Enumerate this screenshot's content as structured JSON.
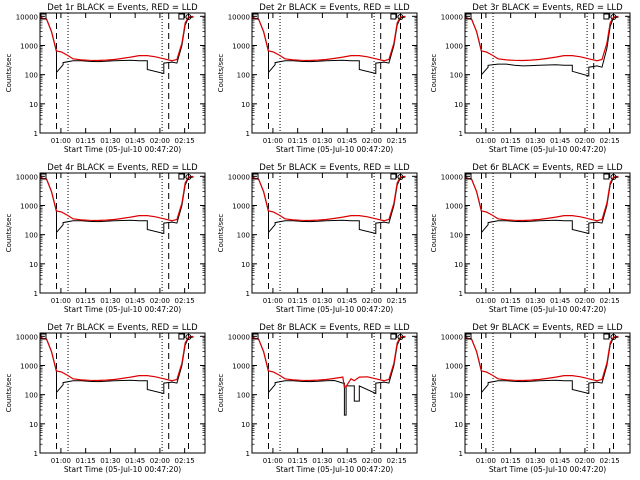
{
  "colors": {
    "background": "#ffffff",
    "axis": "#000000",
    "events": "#000000",
    "lld": "#dd0000"
  },
  "shared": {
    "type": "line",
    "ylabel": "Counts/sec",
    "xlabel": "Start Time (05-Jul-10 00:47:20)",
    "x_ticks": [
      "01:00",
      "01:15",
      "01:30",
      "01:45",
      "02:00",
      "02:15"
    ],
    "x_tick_offsets_min": [
      12.67,
      27.67,
      42.67,
      57.67,
      72.67,
      87.67
    ],
    "xlim_min": [
      0,
      100
    ],
    "y_ticks": [
      "1",
      "10",
      "100",
      "1000",
      "10000"
    ],
    "ylim": [
      1,
      13000
    ],
    "yscale": "log",
    "dashed_markers_min": [
      10,
      78,
      90
    ],
    "dotted_markers_min": [
      17,
      74
    ]
  },
  "chart_data": [
    {
      "title": "Det 1r BLACK = Events, RED = LLD",
      "type": "line",
      "series": [
        {
          "name": "Events",
          "color": "black",
          "x": [
            0,
            4,
            7,
            10,
            10,
            14,
            14,
            20,
            25,
            30,
            35,
            40,
            45,
            50,
            55,
            60,
            65,
            65,
            75,
            75,
            80,
            80,
            83,
            86,
            88,
            90,
            93
          ],
          "y": [
            9000,
            8000,
            3000,
            600,
            120,
            220,
            260,
            300,
            300,
            285,
            280,
            290,
            300,
            305,
            310,
            300,
            300,
            150,
            110,
            250,
            270,
            270,
            250,
            1000,
            5000,
            9000,
            9500
          ]
        },
        {
          "name": "LLD",
          "color": "red",
          "x": [
            0,
            4,
            7,
            10,
            13,
            17,
            20,
            25,
            30,
            35,
            40,
            45,
            50,
            55,
            60,
            65,
            70,
            75,
            80,
            83,
            86,
            88,
            90,
            93
          ],
          "y": [
            9000,
            8000,
            3000,
            650,
            600,
            450,
            350,
            320,
            310,
            305,
            315,
            330,
            360,
            400,
            450,
            450,
            410,
            350,
            300,
            330,
            1200,
            6000,
            9500,
            10000
          ]
        }
      ]
    },
    {
      "title": "Det 2r BLACK = Events, RED = LLD",
      "type": "line",
      "series": [
        {
          "name": "Events",
          "color": "black",
          "x": [
            0,
            4,
            7,
            10,
            10,
            14,
            14,
            20,
            25,
            30,
            35,
            40,
            45,
            50,
            55,
            60,
            65,
            65,
            75,
            75,
            80,
            80,
            83,
            86,
            88,
            90,
            93
          ],
          "y": [
            9000,
            8000,
            3000,
            600,
            120,
            220,
            260,
            300,
            300,
            285,
            280,
            290,
            300,
            305,
            310,
            300,
            300,
            150,
            110,
            250,
            270,
            270,
            250,
            1000,
            5000,
            9000,
            9500
          ]
        },
        {
          "name": "LLD",
          "color": "red",
          "x": [
            0,
            4,
            7,
            10,
            13,
            17,
            20,
            25,
            30,
            35,
            40,
            45,
            50,
            55,
            60,
            65,
            70,
            75,
            80,
            83,
            86,
            88,
            90,
            93
          ],
          "y": [
            9000,
            8000,
            3000,
            650,
            600,
            450,
            350,
            320,
            310,
            305,
            315,
            330,
            360,
            400,
            450,
            450,
            410,
            350,
            300,
            330,
            1200,
            6000,
            9500,
            10000
          ]
        }
      ]
    },
    {
      "title": "Det 3r BLACK = Events, RED = LLD",
      "type": "line",
      "series": [
        {
          "name": "Events",
          "color": "black",
          "x": [
            0,
            4,
            7,
            10,
            10,
            14,
            14,
            20,
            25,
            30,
            35,
            40,
            45,
            50,
            55,
            60,
            65,
            65,
            75,
            75,
            80,
            80,
            83,
            86,
            88,
            90,
            93
          ],
          "y": [
            9000,
            8000,
            3000,
            600,
            100,
            180,
            210,
            230,
            230,
            210,
            200,
            205,
            210,
            215,
            220,
            210,
            210,
            130,
            90,
            180,
            200,
            200,
            180,
            800,
            4500,
            9000,
            9500
          ]
        },
        {
          "name": "LLD",
          "color": "red",
          "x": [
            0,
            4,
            7,
            10,
            13,
            17,
            20,
            25,
            30,
            35,
            40,
            45,
            50,
            55,
            60,
            65,
            70,
            75,
            80,
            83,
            86,
            88,
            90,
            93
          ],
          "y": [
            9000,
            8000,
            3000,
            650,
            600,
            450,
            350,
            320,
            310,
            305,
            315,
            330,
            360,
            400,
            450,
            450,
            410,
            350,
            300,
            330,
            1200,
            6000,
            9500,
            10000
          ]
        }
      ]
    },
    {
      "title": "Det 4r BLACK = Events, RED = LLD",
      "type": "line",
      "series": [
        {
          "name": "Events",
          "color": "black",
          "x": [
            0,
            4,
            7,
            10,
            10,
            14,
            14,
            20,
            25,
            30,
            35,
            40,
            45,
            50,
            55,
            60,
            65,
            65,
            75,
            75,
            80,
            80,
            83,
            86,
            88,
            90,
            93
          ],
          "y": [
            9000,
            8000,
            3000,
            600,
            120,
            220,
            260,
            300,
            300,
            285,
            280,
            290,
            300,
            305,
            310,
            300,
            300,
            150,
            110,
            250,
            270,
            270,
            250,
            1000,
            5000,
            9000,
            9500
          ]
        },
        {
          "name": "LLD",
          "color": "red",
          "x": [
            0,
            4,
            7,
            10,
            13,
            17,
            20,
            25,
            30,
            35,
            40,
            45,
            50,
            55,
            60,
            65,
            70,
            75,
            80,
            83,
            86,
            88,
            90,
            93
          ],
          "y": [
            9000,
            8000,
            3000,
            650,
            600,
            450,
            350,
            320,
            310,
            305,
            315,
            330,
            360,
            400,
            450,
            450,
            410,
            350,
            300,
            330,
            1200,
            6000,
            9500,
            10000
          ]
        }
      ]
    },
    {
      "title": "Det 5r BLACK = Events, RED = LLD",
      "type": "line",
      "series": [
        {
          "name": "Events",
          "color": "black",
          "x": [
            0,
            4,
            7,
            10,
            10,
            14,
            14,
            20,
            25,
            30,
            35,
            40,
            45,
            50,
            55,
            60,
            65,
            65,
            75,
            75,
            80,
            80,
            83,
            86,
            88,
            90,
            93
          ],
          "y": [
            9000,
            8000,
            3000,
            600,
            120,
            220,
            260,
            300,
            300,
            285,
            280,
            290,
            300,
            305,
            310,
            300,
            300,
            150,
            110,
            250,
            270,
            270,
            250,
            1000,
            5000,
            9000,
            9500
          ]
        },
        {
          "name": "LLD",
          "color": "red",
          "x": [
            0,
            4,
            7,
            10,
            13,
            17,
            20,
            25,
            30,
            35,
            40,
            45,
            50,
            55,
            60,
            65,
            70,
            75,
            80,
            83,
            86,
            88,
            90,
            93
          ],
          "y": [
            9000,
            8000,
            3000,
            650,
            600,
            450,
            350,
            320,
            310,
            305,
            315,
            330,
            360,
            400,
            450,
            450,
            410,
            350,
            300,
            330,
            1200,
            6000,
            9500,
            10000
          ]
        }
      ]
    },
    {
      "title": "Det 6r BLACK = Events, RED = LLD",
      "type": "line",
      "series": [
        {
          "name": "Events",
          "color": "black",
          "x": [
            0,
            4,
            7,
            10,
            10,
            14,
            14,
            20,
            25,
            30,
            35,
            40,
            45,
            50,
            55,
            60,
            65,
            65,
            75,
            75,
            80,
            80,
            83,
            86,
            88,
            90,
            93
          ],
          "y": [
            9000,
            8000,
            3000,
            600,
            120,
            220,
            260,
            300,
            300,
            285,
            280,
            290,
            300,
            305,
            310,
            300,
            300,
            150,
            110,
            250,
            270,
            270,
            250,
            1000,
            5000,
            9000,
            9500
          ]
        },
        {
          "name": "LLD",
          "color": "red",
          "x": [
            0,
            4,
            7,
            10,
            13,
            17,
            20,
            25,
            30,
            35,
            40,
            45,
            50,
            55,
            60,
            65,
            70,
            75,
            80,
            83,
            86,
            88,
            90,
            93
          ],
          "y": [
            9000,
            8000,
            3000,
            650,
            600,
            450,
            350,
            320,
            310,
            305,
            315,
            330,
            360,
            400,
            450,
            450,
            410,
            350,
            300,
            330,
            1200,
            6000,
            9500,
            10000
          ]
        }
      ]
    },
    {
      "title": "Det 7r BLACK = Events, RED = LLD",
      "type": "line",
      "series": [
        {
          "name": "Events",
          "color": "black",
          "x": [
            0,
            4,
            7,
            10,
            10,
            14,
            14,
            20,
            25,
            30,
            35,
            40,
            45,
            50,
            55,
            60,
            65,
            65,
            75,
            75,
            80,
            80,
            83,
            86,
            88,
            90,
            93
          ],
          "y": [
            9000,
            8000,
            3000,
            600,
            120,
            220,
            260,
            300,
            300,
            285,
            280,
            290,
            300,
            305,
            310,
            300,
            300,
            150,
            110,
            250,
            270,
            270,
            250,
            1000,
            5000,
            9000,
            9500
          ]
        },
        {
          "name": "LLD",
          "color": "red",
          "x": [
            0,
            4,
            7,
            10,
            13,
            17,
            20,
            25,
            30,
            35,
            40,
            45,
            50,
            55,
            60,
            65,
            70,
            75,
            80,
            83,
            86,
            88,
            90,
            93
          ],
          "y": [
            9000,
            8000,
            3000,
            650,
            600,
            450,
            350,
            320,
            310,
            305,
            315,
            330,
            360,
            400,
            450,
            450,
            410,
            350,
            300,
            330,
            1200,
            6000,
            9500,
            10000
          ]
        }
      ]
    },
    {
      "title": "Det 8r BLACK = Events, RED = LLD",
      "type": "line",
      "series": [
        {
          "name": "Events",
          "color": "black",
          "x": [
            0,
            4,
            7,
            10,
            10,
            14,
            14,
            20,
            25,
            30,
            35,
            40,
            45,
            50,
            55,
            56,
            56,
            57,
            57,
            60,
            62,
            62,
            65,
            65,
            75,
            75,
            80,
            80,
            83,
            86,
            88,
            90,
            93
          ],
          "y": [
            9000,
            8000,
            3000,
            600,
            120,
            220,
            260,
            300,
            300,
            285,
            280,
            290,
            300,
            305,
            250,
            250,
            20,
            20,
            200,
            200,
            200,
            60,
            60,
            200,
            110,
            250,
            270,
            270,
            250,
            1000,
            5000,
            9000,
            9500
          ]
        },
        {
          "name": "LLD",
          "color": "red",
          "x": [
            0,
            4,
            7,
            10,
            13,
            17,
            20,
            25,
            30,
            35,
            40,
            45,
            50,
            55,
            56,
            57,
            60,
            62,
            65,
            70,
            75,
            80,
            83,
            86,
            88,
            90,
            93
          ],
          "y": [
            9000,
            8000,
            3000,
            650,
            600,
            450,
            350,
            320,
            310,
            305,
            315,
            330,
            360,
            400,
            180,
            190,
            350,
            300,
            400,
            410,
            350,
            300,
            330,
            1200,
            6000,
            9500,
            10000
          ]
        }
      ]
    },
    {
      "title": "Det 9r BLACK = Events, RED = LLD",
      "type": "line",
      "series": [
        {
          "name": "Events",
          "color": "black",
          "x": [
            0,
            4,
            7,
            10,
            10,
            14,
            14,
            20,
            25,
            30,
            35,
            40,
            45,
            50,
            55,
            60,
            65,
            65,
            75,
            75,
            80,
            80,
            83,
            86,
            88,
            90,
            93
          ],
          "y": [
            9000,
            8000,
            3000,
            600,
            120,
            220,
            260,
            300,
            300,
            285,
            280,
            290,
            300,
            305,
            310,
            300,
            300,
            150,
            110,
            250,
            270,
            270,
            250,
            1000,
            5000,
            9000,
            9500
          ]
        },
        {
          "name": "LLD",
          "color": "red",
          "x": [
            0,
            4,
            7,
            10,
            13,
            17,
            20,
            25,
            30,
            35,
            40,
            45,
            50,
            55,
            60,
            65,
            70,
            75,
            80,
            83,
            86,
            88,
            90,
            93
          ],
          "y": [
            9000,
            8000,
            3000,
            650,
            600,
            450,
            350,
            320,
            310,
            305,
            315,
            330,
            360,
            400,
            450,
            450,
            410,
            350,
            300,
            330,
            1200,
            6000,
            9500,
            10000
          ]
        }
      ]
    }
  ]
}
